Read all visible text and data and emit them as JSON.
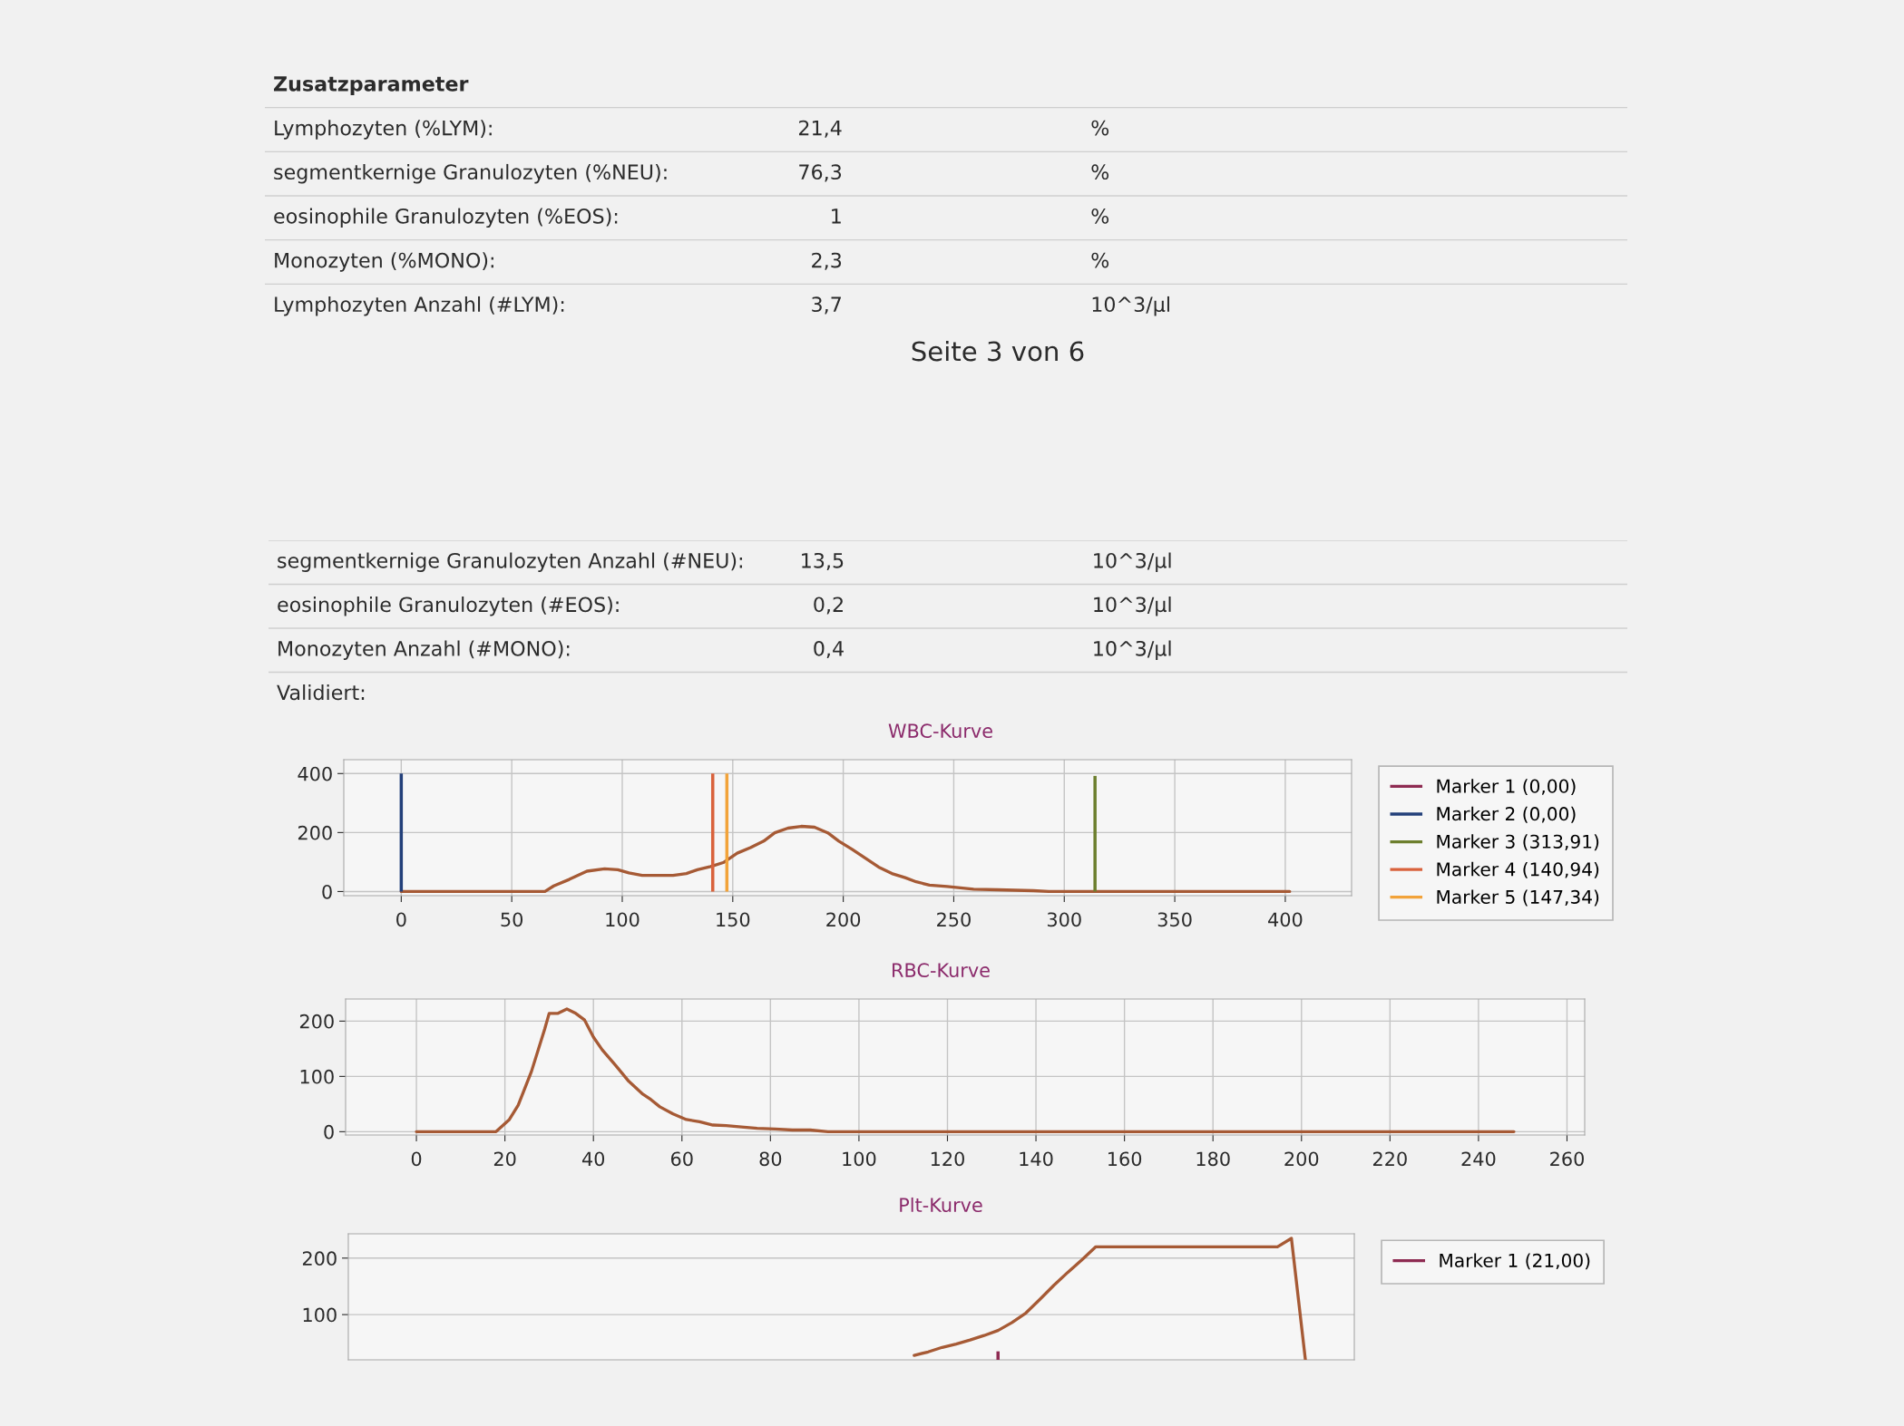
{
  "chart_data": [
    {
      "type": "other",
      "title": "Zusatzparameter",
      "annotations": [
        "Lymphozyten (%LYM):",
        "21,4",
        "%",
        "segmentkernige Granulozyten (%NEU):",
        "76,3",
        "%",
        "eosinophile Granulozyten (%EOS):",
        "1",
        "%",
        "Monozyten (%MONO):",
        "2,3",
        "%",
        "Lymphozyten Anzahl (#LYM):",
        "3,7",
        "10^3/µl"
      ]
    },
    {
      "type": "other",
      "annotations": [
        "Seite 3 von 6"
      ]
    },
    {
      "type": "other",
      "annotations": [
        "segmentkernige Granulozyten Anzahl (#NEU):",
        "13,5",
        "10^3/µl",
        "eosinophile Granulozyten (#EOS):",
        "0,2",
        "10^3/µl",
        "Monozyten Anzahl (#MONO):",
        "0,4",
        "10^3/µl",
        "Validiert:"
      ]
    },
    {
      "type": "line",
      "title": "WBC-Kurve",
      "series": [
        {
          "color": "#a65a35",
          "x": [
            0,
            65,
            69,
            76,
            84,
            92,
            98,
            103,
            109,
            115,
            123,
            129,
            134,
            140,
            146,
            152,
            158,
            164,
            169,
            175,
            181,
            187,
            193,
            198,
            204,
            210,
            216,
            222,
            228,
            233,
            239,
            247,
            259,
            270,
            286,
            293,
            402
          ],
          "values": [
            0,
            0,
            19,
            41,
            69,
            77,
            74,
            63,
            55,
            55,
            55,
            61,
            74,
            85,
            99,
            130,
            149,
            171,
            199,
            215,
            221,
            218,
            199,
            171,
            143,
            113,
            83,
            61,
            47,
            33,
            22,
            17,
            8,
            6,
            3,
            0,
            0
          ]
        },
        {
          "type": "bar",
          "name": "Marker 1 (0,00)",
          "color": "#8e2b52"
        },
        {
          "type": "bar",
          "name": "Marker 2 (0,00)",
          "color": "#23407a",
          "x": [
            0
          ],
          "values": [
            400
          ]
        },
        {
          "type": "bar",
          "name": "Marker 3 (313,91)",
          "color": "#6d7f2e",
          "x": [
            313.91
          ],
          "values": [
            392
          ]
        },
        {
          "type": "bar",
          "name": "Marker 4 (140,94)",
          "color": "#d9623c",
          "x": [
            140.94
          ],
          "values": [
            400
          ]
        },
        {
          "type": "bar",
          "name": "Marker 5 (147,34)",
          "color": "#f2a33a",
          "x": [
            147.34
          ],
          "values": [
            400
          ]
        }
      ],
      "xlim": [
        -26,
        430
      ],
      "xticks": [
        0,
        50,
        100,
        150,
        200,
        250,
        300,
        350,
        400
      ],
      "ylim": [
        -14,
        447
      ],
      "yticks": [
        0,
        200,
        400
      ],
      "grid": true,
      "legend": "right"
    },
    {
      "type": "line",
      "title": "RBC-Kurve",
      "series": [
        {
          "color": "#a65a35",
          "x": [
            0,
            18,
            21,
            23,
            26,
            29,
            30,
            32,
            34,
            36,
            38,
            40,
            42,
            45,
            48,
            51,
            53,
            55,
            58,
            61,
            64,
            67,
            70,
            74,
            77,
            81,
            85,
            89,
            93,
            248
          ],
          "values": [
            0,
            0,
            22,
            48,
            109,
            186,
            214,
            214,
            222,
            214,
            202,
            171,
            148,
            120,
            91,
            69,
            58,
            45,
            32,
            22,
            18,
            12,
            11,
            8,
            6,
            5,
            3,
            3,
            0,
            0
          ]
        }
      ],
      "xlim": [
        -16,
        264
      ],
      "xticks": [
        0,
        20,
        40,
        60,
        80,
        100,
        120,
        140,
        160,
        180,
        200,
        220,
        240,
        260
      ],
      "ylim": [
        -6,
        240
      ],
      "yticks": [
        0,
        100,
        200
      ],
      "grid": true
    },
    {
      "type": "line",
      "title": "Plt-Kurve",
      "categories": [
        null,
        null,
        null,
        null,
        null,
        null,
        null,
        null,
        null,
        null,
        null,
        null,
        null,
        null,
        null,
        null,
        null,
        null,
        null,
        null,
        null,
        null,
        null,
        null,
        null,
        null,
        null,
        null,
        null,
        null,
        null,
        null,
        null,
        null,
        null,
        null,
        null,
        null,
        null,
        null,
        null,
        null,
        null,
        null,
        null,
        null,
        null,
        null,
        null,
        null,
        null,
        null,
        null,
        null,
        null,
        null,
        null,
        null,
        null,
        null,
        null,
        null,
        null,
        null,
        null,
        null,
        null,
        null,
        null,
        null,
        null,
        null
      ],
      "series": [
        {
          "color": "#a65a35",
          "values": [
            null,
            null,
            null,
            null,
            null,
            null,
            null,
            null,
            null,
            null,
            null,
            null,
            null,
            null,
            null,
            null,
            null,
            null,
            null,
            null,
            null,
            null,
            null,
            null,
            null,
            null,
            null,
            null,
            null,
            null,
            null,
            null,
            null,
            null,
            null,
            null,
            null,
            null,
            null,
            null,
            28,
            34,
            42,
            48,
            55,
            63,
            72,
            86,
            103,
            127,
            152,
            175,
            197,
            220,
            220,
            220,
            220,
            220,
            220,
            220,
            220,
            220,
            220,
            220,
            220,
            220,
            220,
            235,
            20,
            null,
            null,
            null
          ]
        },
        {
          "type": "bar",
          "name": "Marker 1 (21,00)",
          "color": "#8e2b52",
          "base": [
            null,
            null,
            null,
            null,
            null,
            null,
            null,
            null,
            null,
            null,
            null,
            null,
            null,
            null,
            null,
            null,
            null,
            null,
            null,
            null,
            null,
            null,
            null,
            null,
            null,
            null,
            null,
            null,
            null,
            null,
            null,
            null,
            null,
            null,
            null,
            null,
            null,
            null,
            null,
            null,
            null,
            null,
            null,
            null,
            null,
            null,
            20,
            null,
            null,
            null,
            null,
            null,
            null,
            null,
            null,
            null,
            null,
            null,
            null,
            null,
            null,
            null,
            null,
            null,
            null,
            null,
            null,
            null,
            null,
            null,
            null,
            null
          ],
          "values": [
            null,
            null,
            null,
            null,
            null,
            null,
            null,
            null,
            null,
            null,
            null,
            null,
            null,
            null,
            null,
            null,
            null,
            null,
            null,
            null,
            null,
            null,
            null,
            null,
            null,
            null,
            null,
            null,
            null,
            null,
            null,
            null,
            null,
            null,
            null,
            null,
            null,
            null,
            null,
            null,
            null,
            null,
            null,
            null,
            null,
            null,
            15,
            null,
            null,
            null,
            null,
            null,
            null,
            null,
            null,
            null,
            null,
            null,
            null,
            null,
            null,
            null,
            null,
            null,
            null,
            null,
            null,
            null,
            null,
            null,
            null,
            null
          ]
        }
      ],
      "ylim": [
        20,
        243
      ],
      "yticks": [
        100,
        200
      ],
      "grid": "y",
      "legend": "right",
      "tick_labels": "y"
    }
  ]
}
